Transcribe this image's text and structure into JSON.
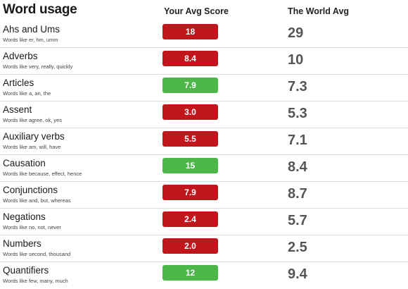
{
  "header": {
    "title": "Word usage",
    "your_avg": "Your Avg Score",
    "world_avg": "The World Avg"
  },
  "colors": {
    "below": "#c0161c",
    "above": "#4cb748"
  },
  "rows": [
    {
      "name": "Ahs and Ums",
      "desc": "Words like er, hm, umm",
      "score": "18",
      "status": "low",
      "world": "29"
    },
    {
      "name": "Adverbs",
      "desc": "Words like very, really, quickly",
      "score": "8.4",
      "status": "low",
      "world": "10"
    },
    {
      "name": "Articles",
      "desc": "Words like a, an, the",
      "score": "7.9",
      "status": "high",
      "world": "7.3"
    },
    {
      "name": "Assent",
      "desc": "Words like agree, ok, yes",
      "score": "3.0",
      "status": "low",
      "world": "5.3"
    },
    {
      "name": "Auxiliary verbs",
      "desc": "Words like am, will, have",
      "score": "5.5",
      "status": "low",
      "world": "7.1"
    },
    {
      "name": "Causation",
      "desc": "Words like because, effect, hence",
      "score": "15",
      "status": "high",
      "world": "8.4"
    },
    {
      "name": "Conjunctions",
      "desc": "Words like and, but, whereas",
      "score": "7.9",
      "status": "low",
      "world": "8.7"
    },
    {
      "name": "Negations",
      "desc": "Words like no, not, never",
      "score": "2.4",
      "status": "low",
      "world": "5.7"
    },
    {
      "name": "Numbers",
      "desc": "Words like second, thousand",
      "score": "2.0",
      "status": "low",
      "world": "2.5"
    },
    {
      "name": "Quantifiers",
      "desc": "Words like few, many, much",
      "score": "12",
      "status": "high",
      "world": "9.4"
    }
  ]
}
